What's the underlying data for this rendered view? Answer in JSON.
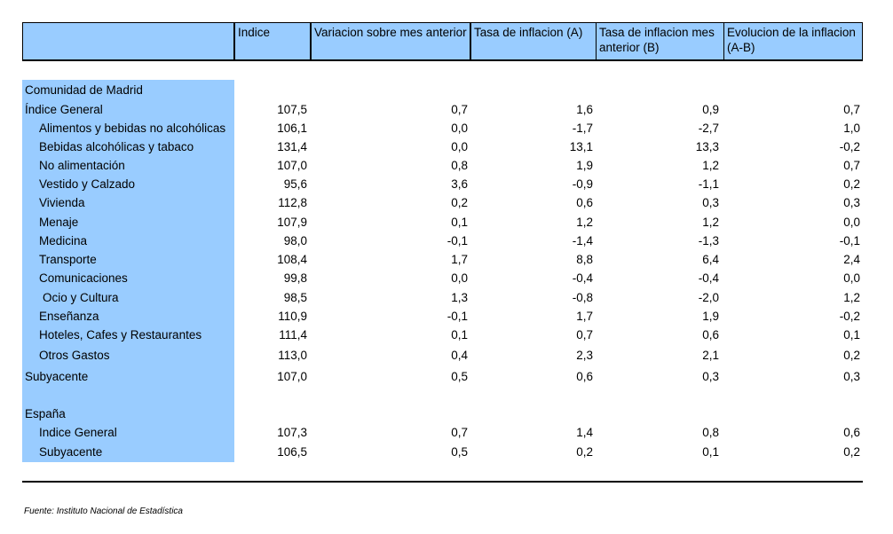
{
  "headers": {
    "indice": "Indice",
    "variacion": "Variacion sobre mes anterior",
    "tasa_a": "Tasa de inflacion (A)",
    "tasa_b": "Tasa de inflacion mes anterior (B)",
    "evolucion": "Evolucion de la inflacion (A-B)"
  },
  "sections": [
    {
      "title": "Comunidad de Madrid",
      "rows": [
        {
          "label": "Índice General",
          "indent": 0,
          "values": [
            "107,5",
            "0,7",
            "1,6",
            "0,9",
            "0,7"
          ]
        },
        {
          "label": "Alimentos y bebidas no alcohólicas",
          "indent": 1,
          "values": [
            "106,1",
            "0,0",
            "-1,7",
            "-2,7",
            "1,0"
          ]
        },
        {
          "label": "Bebidas alcohólicas y tabaco",
          "indent": 1,
          "values": [
            "131,4",
            "0,0",
            "13,1",
            "13,3",
            "-0,2"
          ]
        },
        {
          "label": "No alimentación",
          "indent": 1,
          "values": [
            "107,0",
            "0,8",
            "1,9",
            "1,2",
            "0,7"
          ]
        },
        {
          "label": "Vestido y Calzado",
          "indent": 1,
          "values": [
            "95,6",
            "3,6",
            "-0,9",
            "-1,1",
            "0,2"
          ]
        },
        {
          "label": "Vivienda",
          "indent": 1,
          "values": [
            "112,8",
            "0,2",
            "0,6",
            "0,3",
            "0,3"
          ]
        },
        {
          "label": "Menaje",
          "indent": 1,
          "values": [
            "107,9",
            "0,1",
            "1,2",
            "1,2",
            "0,0"
          ]
        },
        {
          "label": "Medicina",
          "indent": 1,
          "values": [
            "98,0",
            "-0,1",
            "-1,4",
            "-1,3",
            "-0,1"
          ]
        },
        {
          "label": "Transporte",
          "indent": 1,
          "values": [
            "108,4",
            "1,7",
            "8,8",
            "6,4",
            "2,4"
          ]
        },
        {
          "label": "Comunicaciones",
          "indent": 1,
          "values": [
            "99,8",
            "0,0",
            "-0,4",
            "-0,4",
            "0,0"
          ]
        },
        {
          "label": "Ocio y Cultura",
          "indent": 2,
          "values": [
            "98,5",
            "1,3",
            "-0,8",
            "-2,0",
            "1,2"
          ]
        },
        {
          "label": "Enseñanza",
          "indent": 1,
          "values": [
            "110,9",
            "-0,1",
            "1,7",
            "1,9",
            "-0,2"
          ]
        },
        {
          "label": "Hoteles, Cafes y Restaurantes",
          "indent": 1,
          "values": [
            "111,4",
            "0,1",
            "0,7",
            "0,6",
            "0,1"
          ]
        },
        {
          "label": "Otros Gastos",
          "indent": 1,
          "values": [
            "113,0",
            "0,4",
            "2,3",
            "2,1",
            "0,2"
          ]
        },
        {
          "label": "Subyacente",
          "indent": 0,
          "values": [
            "107,0",
            "0,5",
            "0,6",
            "0,3",
            "0,3"
          ]
        }
      ]
    },
    {
      "title": "España",
      "rows": [
        {
          "label": "Indice General",
          "indent": 1,
          "values": [
            "107,3",
            "0,7",
            "1,4",
            "0,8",
            "0,6"
          ]
        },
        {
          "label": "Subyacente",
          "indent": 1,
          "values": [
            "106,5",
            "0,5",
            "0,2",
            "0,1",
            "0,2"
          ]
        }
      ]
    }
  ],
  "source": "Fuente: Instituto Nacional de Estadística"
}
